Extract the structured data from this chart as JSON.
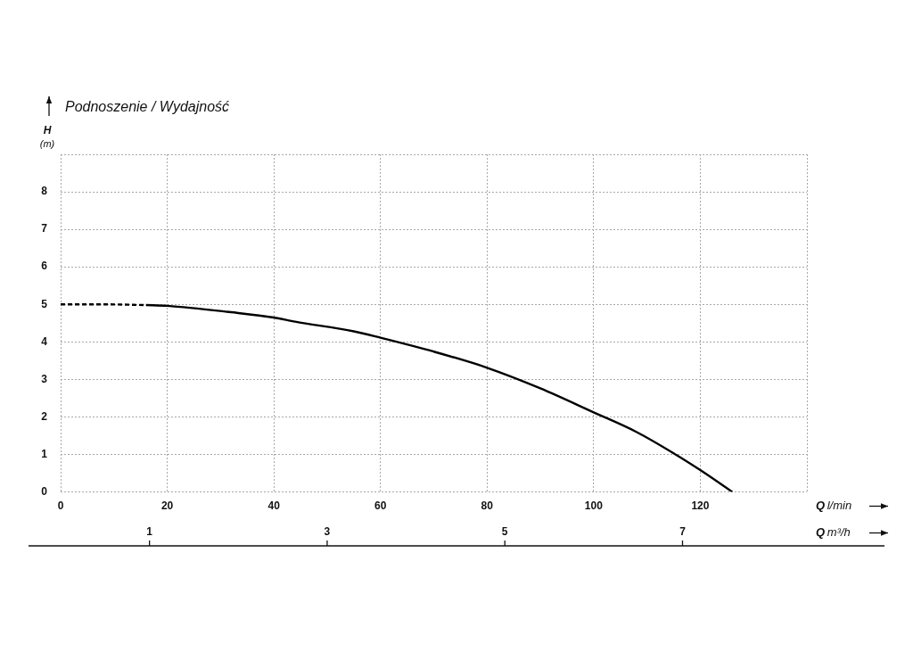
{
  "chart_data": {
    "type": "line",
    "title": "Podnoszenie / Wydajność",
    "xlabel": "Q l/min",
    "ylabel": "H (m)",
    "x2label": "Q m³/h",
    "series": [
      {
        "color": "#000000",
        "line_style": "dashed",
        "x": [
          0,
          8,
          16
        ],
        "values": [
          5,
          5,
          4.98
        ]
      },
      {
        "color": "#000000",
        "line_style": "solid",
        "x": [
          16,
          20,
          32,
          40,
          44,
          55,
          60,
          70,
          80,
          90,
          100,
          108,
          115,
          120,
          126
        ],
        "values": [
          4.98,
          4.96,
          4.79,
          4.65,
          4.54,
          4.28,
          4.11,
          3.74,
          3.31,
          2.76,
          2.12,
          1.6,
          1.03,
          0.58,
          0
        ]
      }
    ],
    "xlim": [
      0,
      140
    ],
    "xticks": [
      0,
      20,
      40,
      60,
      80,
      100,
      120,
      {
        "value": 140,
        "label": null
      }
    ],
    "ylim": [
      0,
      9
    ],
    "yticks": [
      0,
      1,
      2,
      3,
      4,
      5,
      6,
      7,
      8,
      {
        "value": 9,
        "label": null
      }
    ],
    "x2lim": [
      0,
      8.4
    ],
    "x2ticks": [
      1,
      3,
      5,
      7
    ],
    "grid": true,
    "marker": "none"
  }
}
